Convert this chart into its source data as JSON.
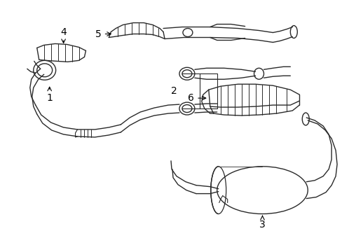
{
  "background_color": "#ffffff",
  "line_color": "#2a2a2a",
  "lw": 1.0,
  "figsize": [
    4.89,
    3.6
  ],
  "dpi": 100
}
